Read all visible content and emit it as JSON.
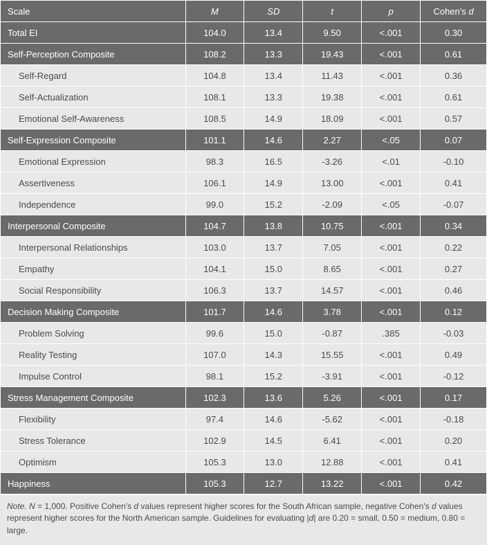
{
  "table": {
    "headers": {
      "scale": "Scale",
      "m": "M",
      "sd": "SD",
      "t": "t",
      "p": "p",
      "d_prefix": "Cohen's ",
      "d_ital": "d"
    },
    "rows": [
      {
        "type": "main",
        "scale": "Total EI",
        "m": "104.0",
        "sd": "13.4",
        "t": "9.50",
        "p": "<.001",
        "d": "0.30"
      },
      {
        "type": "composite",
        "scale": "Self-Perception Composite",
        "m": "108.2",
        "sd": "13.3",
        "t": "19.43",
        "p": "<.001",
        "d": "0.61"
      },
      {
        "type": "sub",
        "scale": "Self-Regard",
        "m": "104.8",
        "sd": "13.4",
        "t": "11.43",
        "p": "<.001",
        "d": "0.36"
      },
      {
        "type": "sub",
        "scale": "Self-Actualization",
        "m": "108.1",
        "sd": "13.3",
        "t": "19.38",
        "p": "<.001",
        "d": "0.61"
      },
      {
        "type": "sub",
        "scale": "Emotional Self-Awareness",
        "m": "108.5",
        "sd": "14.9",
        "t": "18.09",
        "p": "<.001",
        "d": "0.57"
      },
      {
        "type": "composite",
        "scale": "Self-Expression Composite",
        "m": "101.1",
        "sd": "14.6",
        "t": "2.27",
        "p": "<.05",
        "d": "0.07"
      },
      {
        "type": "sub",
        "scale": "Emotional Expression",
        "m": "98.3",
        "sd": "16.5",
        "t": "-3.26",
        "p": "<.01",
        "d": "-0.10"
      },
      {
        "type": "sub",
        "scale": "Assertiveness",
        "m": "106.1",
        "sd": "14.9",
        "t": "13.00",
        "p": "<.001",
        "d": "0.41"
      },
      {
        "type": "sub",
        "scale": "Independence",
        "m": "99.0",
        "sd": "15.2",
        "t": "-2.09",
        "p": "<.05",
        "d": "-0.07"
      },
      {
        "type": "composite",
        "scale": "Interpersonal Composite",
        "m": "104.7",
        "sd": "13.8",
        "t": "10.75",
        "p": "<.001",
        "d": "0.34"
      },
      {
        "type": "sub",
        "scale": "Interpersonal Relationships",
        "m": "103.0",
        "sd": "13.7",
        "t": "7.05",
        "p": "<.001",
        "d": "0.22"
      },
      {
        "type": "sub",
        "scale": "Empathy",
        "m": "104.1",
        "sd": "15.0",
        "t": "8.65",
        "p": "<.001",
        "d": "0.27"
      },
      {
        "type": "sub",
        "scale": "Social Responsibility",
        "m": "106.3",
        "sd": "13.7",
        "t": "14.57",
        "p": "<.001",
        "d": "0.46"
      },
      {
        "type": "composite",
        "scale": "Decision Making Composite",
        "m": "101.7",
        "sd": "14.6",
        "t": "3.78",
        "p": "<.001",
        "d": "0.12"
      },
      {
        "type": "sub",
        "scale": "Problem Solving",
        "m": "99.6",
        "sd": "15.0",
        "t": "-0.87",
        "p": ".385",
        "d": "-0.03"
      },
      {
        "type": "sub",
        "scale": "Reality Testing",
        "m": "107.0",
        "sd": "14.3",
        "t": "15.55",
        "p": "<.001",
        "d": "0.49"
      },
      {
        "type": "sub",
        "scale": "Impulse Control",
        "m": "98.1",
        "sd": "15.2",
        "t": "-3.91",
        "p": "<.001",
        "d": "-0.12"
      },
      {
        "type": "composite",
        "scale": "Stress Management Composite",
        "m": "102.3",
        "sd": "13.6",
        "t": "5.26",
        "p": "<.001",
        "d": "0.17"
      },
      {
        "type": "sub",
        "scale": "Flexibility",
        "m": "97.4",
        "sd": "14.6",
        "t": "-5.62",
        "p": "<.001",
        "d": "-0.18"
      },
      {
        "type": "sub",
        "scale": "Stress Tolerance",
        "m": "102.9",
        "sd": "14.5",
        "t": "6.41",
        "p": "<.001",
        "d": "0.20"
      },
      {
        "type": "sub",
        "scale": "Optimism",
        "m": "105.3",
        "sd": "13.0",
        "t": "12.88",
        "p": "<.001",
        "d": "0.41"
      },
      {
        "type": "main",
        "scale": "Happiness",
        "m": "105.3",
        "sd": "12.7",
        "t": "13.22",
        "p": "<.001",
        "d": "0.42"
      }
    ],
    "footnote": {
      "note_label": "Note. ",
      "n_label": "N",
      "n_text": " = 1,000. Positive Cohen's ",
      "d1": "d",
      "mid1": " values represent higher scores for the South African sample, negative Cohen's ",
      "d2": "d",
      "mid2": " values represent higher scores for the North American sample. Guidelines for evaluating |",
      "d3": "d",
      "end": "| are 0.20 = small, 0.50 = medium, 0.80 = large."
    },
    "colors": {
      "header_bg": "#6a6a6a",
      "header_fg": "#ffffff",
      "sub_bg": "#e8e8e8",
      "sub_fg": "#4a4a4a",
      "border": "#ffffff"
    }
  }
}
